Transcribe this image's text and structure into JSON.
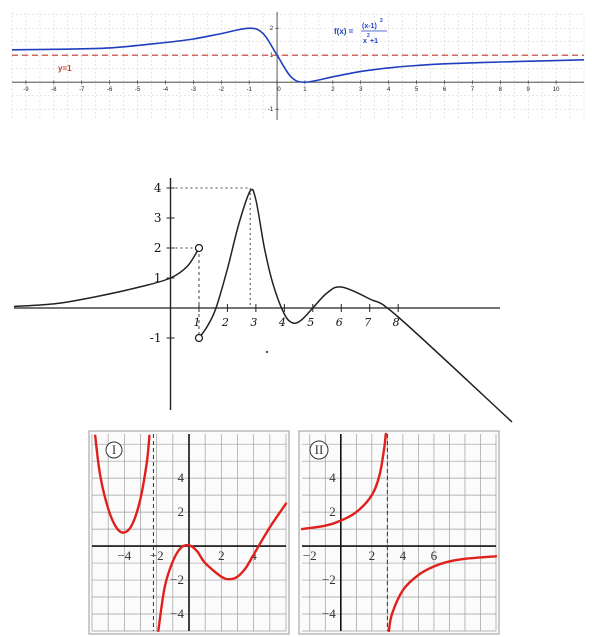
{
  "chart_data": [
    {
      "type": "line",
      "function_label": "f(x)=(x-1)^2/(x^2+1)",
      "formula": {
        "prefix": "f(x) =",
        "numerator": "(x-1)",
        "num_exp": "2",
        "denominator": "x",
        "den_exp": "2",
        "den_tail": " +1"
      },
      "asymptote_label": "y=1",
      "xlim": [
        -9.5,
        11
      ],
      "ylim": [
        -1.4,
        2.6
      ],
      "x_ticks": [
        -9,
        -8,
        -7,
        -6,
        -5,
        -4,
        -3,
        -2,
        -1,
        0,
        1,
        2,
        3,
        4,
        5,
        6,
        7,
        8,
        9,
        10
      ],
      "y_ticks": [
        -1,
        0,
        1,
        2
      ],
      "grid": true,
      "colors": {
        "curve": "#1f3fbf",
        "asymptote": "#c0392b",
        "grid": "#c8c8c8"
      },
      "series": [
        {
          "points": [
            [
              -9.5,
              1.2
            ],
            [
              -8,
              1.22
            ],
            [
              -6,
              1.27
            ],
            [
              -4,
              1.47
            ],
            [
              -3,
              1.6
            ],
            [
              -2,
              1.8
            ],
            [
              -1,
              2.0
            ],
            [
              -0.5,
              1.8
            ],
            [
              0,
              1.0
            ],
            [
              0.5,
              0.2
            ],
            [
              1,
              0.0
            ],
            [
              2,
              0.2
            ],
            [
              3,
              0.4
            ],
            [
              4,
              0.53
            ],
            [
              5,
              0.62
            ],
            [
              6,
              0.68
            ],
            [
              8,
              0.75
            ],
            [
              10,
              0.8
            ],
            [
              11,
              0.83
            ]
          ]
        }
      ],
      "asymptote": {
        "y": 1
      }
    },
    {
      "type": "line",
      "x_ticks": [
        1,
        2,
        3,
        4,
        5,
        6,
        7,
        8
      ],
      "x_tick_labels": [
        "1",
        "2",
        "3",
        "4",
        "5",
        "6",
        "7",
        "8"
      ],
      "y_ticks": [
        -1,
        1,
        2,
        3,
        4
      ],
      "y_tick_labels": [
        "-1",
        "1",
        "2",
        "3",
        "4"
      ],
      "xlim": [
        -5.5,
        12
      ],
      "ylim": [
        -3.8,
        4.6
      ],
      "series": [
        {
          "points": [
            [
              -5.5,
              0.05
            ],
            [
              -4,
              0.15
            ],
            [
              -2.5,
              0.4
            ],
            [
              -1,
              0.72
            ],
            [
              0,
              1.0
            ],
            [
              0.6,
              1.4
            ],
            [
              1,
              2.0
            ]
          ]
        },
        {
          "points": [
            [
              1,
              -1.0
            ],
            [
              1.3,
              -0.6
            ],
            [
              1.6,
              0.0
            ],
            [
              2,
              1.3
            ],
            [
              2.4,
              2.8
            ],
            [
              2.8,
              3.9
            ],
            [
              3.0,
              3.6
            ],
            [
              3.3,
              2.0
            ],
            [
              3.6,
              0.8
            ],
            [
              4,
              -0.2
            ],
            [
              4.3,
              -0.5
            ],
            [
              4.6,
              -0.4
            ],
            [
              5,
              0.0
            ],
            [
              5.5,
              0.5
            ],
            [
              6,
              0.7
            ],
            [
              7,
              0.3
            ],
            [
              8,
              -0.3
            ],
            [
              12,
              -3.8
            ]
          ]
        }
      ],
      "open_points": [
        [
          1,
          2
        ],
        [
          1,
          -1
        ]
      ],
      "dotted_guides": {
        "max_point": [
          2.8,
          4
        ],
        "jump_x": 1
      }
    },
    {
      "type": "line",
      "panel_label": "I",
      "x_tick_labels": [
        {
          "x": -4,
          "text": "−4"
        },
        {
          "x": -2,
          "text": "−2"
        },
        {
          "x": 2,
          "text": "2"
        },
        {
          "x": 4,
          "text": "4"
        }
      ],
      "y_tick_labels": [
        {
          "y": 4,
          "text": "4"
        },
        {
          "y": 2,
          "text": "2"
        },
        {
          "y": -2,
          "text": "−2"
        },
        {
          "y": -4,
          "text": "−4"
        }
      ],
      "xlim": [
        -6,
        6
      ],
      "ylim": [
        -5,
        6.6
      ],
      "grid": true,
      "asymptote_x": -2.2,
      "colors": {
        "curve": "#e0201c"
      },
      "series": [
        {
          "points": [
            [
              -5.8,
              6.5
            ],
            [
              -5.5,
              4.2
            ],
            [
              -5,
              2.2
            ],
            [
              -4.5,
              1.1
            ],
            [
              -4,
              0.8
            ],
            [
              -3.5,
              1.3
            ],
            [
              -3,
              2.8
            ],
            [
              -2.6,
              5.0
            ],
            [
              -2.45,
              6.5
            ]
          ]
        },
        {
          "points": [
            [
              -1.9,
              -5
            ],
            [
              -1.5,
              -2.4
            ],
            [
              -1,
              -0.9
            ],
            [
              -0.5,
              -0.1
            ],
            [
              0,
              0.05
            ],
            [
              0.5,
              -0.3
            ],
            [
              1,
              -1.0
            ],
            [
              2,
              -1.8
            ],
            [
              2.5,
              -1.95
            ],
            [
              3,
              -1.8
            ],
            [
              3.5,
              -1.3
            ],
            [
              4,
              -0.5
            ],
            [
              5,
              1.1
            ],
            [
              6,
              2.5
            ]
          ]
        }
      ]
    },
    {
      "type": "line",
      "panel_label": "II",
      "x_tick_labels": [
        {
          "x": -2,
          "text": "−2"
        },
        {
          "x": 2,
          "text": "2"
        },
        {
          "x": 4,
          "text": "4"
        },
        {
          "x": 6,
          "text": "6"
        }
      ],
      "y_tick_labels": [
        {
          "y": 4,
          "text": "4"
        },
        {
          "y": 2,
          "text": "2"
        },
        {
          "y": -2,
          "text": "−2"
        },
        {
          "y": -4,
          "text": "−4"
        }
      ],
      "xlim": [
        -2.5,
        10
      ],
      "ylim": [
        -5,
        6.6
      ],
      "grid": true,
      "asymptote_x": 3,
      "colors": {
        "curve": "#e0201c"
      },
      "series": [
        {
          "points": [
            [
              -2.5,
              1.0
            ],
            [
              -1,
              1.2
            ],
            [
              0,
              1.5
            ],
            [
              1,
              2.0
            ],
            [
              2,
              3.0
            ],
            [
              2.5,
              4.2
            ],
            [
              2.8,
              5.8
            ],
            [
              2.9,
              6.6
            ]
          ]
        },
        {
          "points": [
            [
              3.1,
              -5
            ],
            [
              3.3,
              -4.0
            ],
            [
              4,
              -2.6
            ],
            [
              5,
              -1.7
            ],
            [
              6,
              -1.2
            ],
            [
              7,
              -0.9
            ],
            [
              8,
              -0.75
            ],
            [
              10,
              -0.6
            ]
          ]
        }
      ]
    }
  ]
}
